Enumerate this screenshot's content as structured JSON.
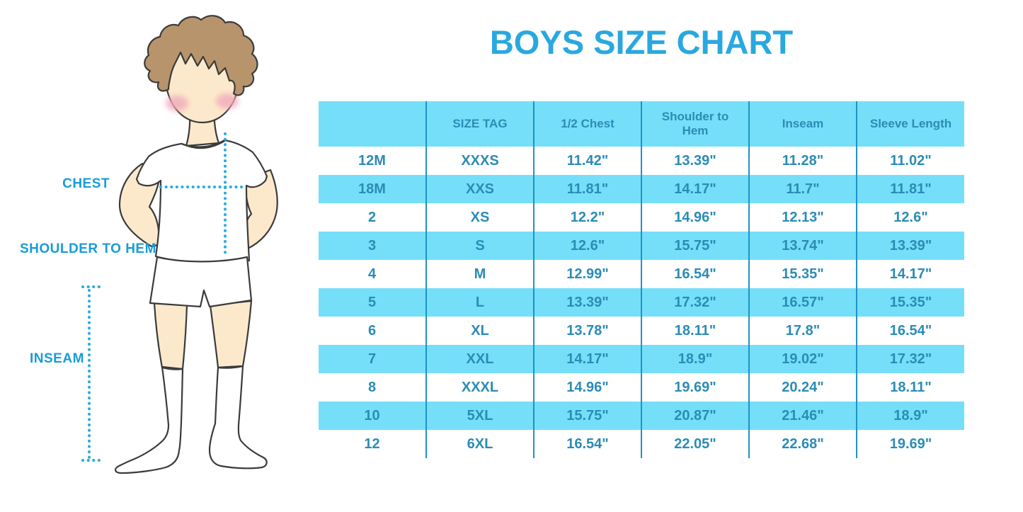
{
  "page": {
    "title": "BOYS SIZE CHART"
  },
  "figure": {
    "chest_label": "CHEST",
    "shoulder_to_hem_label": "SHOULDER TO HEM",
    "inseam_label": "INSEAM"
  },
  "chart_data": {
    "type": "table",
    "title": "BOYS SIZE CHART",
    "columns": [
      "",
      "SIZE TAG",
      "1/2 Chest",
      "Shoulder to Hem",
      "Inseam",
      "Sleeve Length"
    ],
    "rows": [
      [
        "12M",
        "XXXS",
        "11.42\"",
        "13.39\"",
        "11.28\"",
        "11.02\""
      ],
      [
        "18M",
        "XXS",
        "11.81\"",
        "14.17\"",
        "11.7\"",
        "11.81\""
      ],
      [
        "2",
        "XS",
        "12.2\"",
        "14.96\"",
        "12.13\"",
        "12.6\""
      ],
      [
        "3",
        "S",
        "12.6\"",
        "15.75\"",
        "13.74\"",
        "13.39\""
      ],
      [
        "4",
        "M",
        "12.99\"",
        "16.54\"",
        "15.35\"",
        "14.17\""
      ],
      [
        "5",
        "L",
        "13.39\"",
        "17.32\"",
        "16.57\"",
        "15.35\""
      ],
      [
        "6",
        "XL",
        "13.78\"",
        "18.11\"",
        "17.8\"",
        "16.54\""
      ],
      [
        "7",
        "XXL",
        "14.17\"",
        "18.9\"",
        "19.02\"",
        "17.32\""
      ],
      [
        "8",
        "XXXL",
        "14.96\"",
        "19.69\"",
        "20.24\"",
        "18.11\""
      ],
      [
        "10",
        "5XL",
        "15.75\"",
        "20.87\"",
        "21.46\"",
        "18.9\""
      ],
      [
        "12",
        "6XL",
        "16.54\"",
        "22.05\"",
        "22.68\"",
        "19.69\""
      ]
    ],
    "row_striping": [
      "white",
      "cyan"
    ],
    "grid": "column-dividers-only",
    "legend_position": "none"
  },
  "colors": {
    "title_blue": "#29A8DF",
    "table_text_blue": "#2B8CB5",
    "stripe_cyan": "#75DFF9",
    "column_divider_blue": "#2093C4",
    "measure_line_blue": "#29ABE2",
    "label_blue": "#189CD8",
    "hair_brown": "#B7946C",
    "skin": "#FCE9CB",
    "blush_pink": "#F2A9BC",
    "outline": "#3B3B3B"
  }
}
